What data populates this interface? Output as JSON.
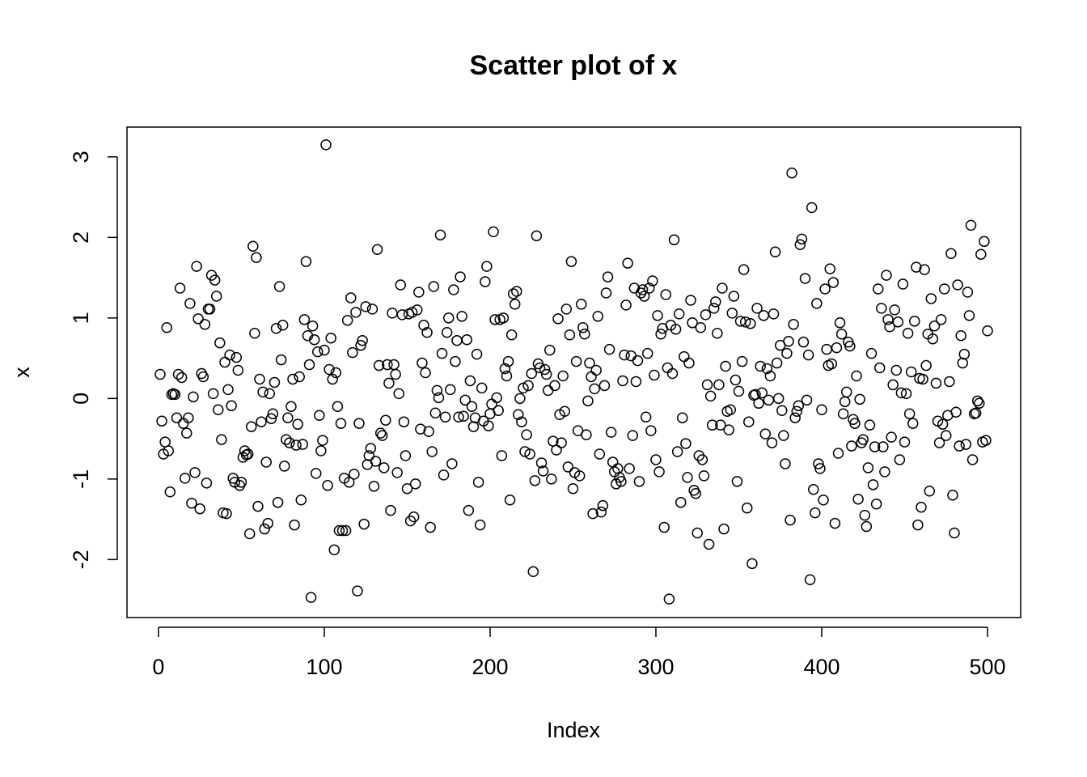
{
  "chart_data": {
    "type": "scatter",
    "title": "Scatter plot of x",
    "x_label": "Index",
    "y_label": "x",
    "color": "#000000",
    "xlim": [
      -19,
      520
    ],
    "ylim": [
      -2.72,
      3.37
    ],
    "xticks": [
      0,
      100,
      200,
      300,
      400,
      500
    ],
    "yticks": [
      -2,
      -1,
      0,
      1,
      2,
      3
    ],
    "x": [
      1,
      2,
      3,
      4,
      5,
      6,
      7,
      8,
      9,
      10,
      11,
      12,
      13,
      14,
      15,
      16,
      17,
      18,
      19,
      20,
      21,
      22,
      23,
      24,
      25,
      26,
      27,
      28,
      29,
      30,
      31,
      32,
      33,
      34,
      35,
      36,
      37,
      38,
      39,
      40,
      41,
      42,
      43,
      44,
      45,
      46,
      47,
      48,
      49,
      50,
      51,
      52,
      53,
      54,
      55,
      56,
      57,
      58,
      59,
      60,
      61,
      62,
      63,
      64,
      65,
      66,
      67,
      68,
      69,
      70,
      71,
      72,
      73,
      74,
      75,
      76,
      77,
      78,
      79,
      80,
      81,
      82,
      83,
      84,
      85,
      86,
      87,
      88,
      89,
      90,
      91,
      92,
      93,
      94,
      95,
      96,
      97,
      98,
      99,
      100,
      101,
      102,
      103,
      104,
      105,
      106,
      107,
      108,
      109,
      110,
      111,
      112,
      113,
      114,
      115,
      116,
      117,
      118,
      119,
      120,
      121,
      122,
      123,
      124,
      125,
      126,
      127,
      128,
      129,
      130,
      131,
      132,
      133,
      134,
      135,
      136,
      137,
      138,
      139,
      140,
      141,
      142,
      143,
      144,
      145,
      146,
      147,
      148,
      149,
      150,
      151,
      152,
      153,
      154,
      155,
      156,
      157,
      158,
      159,
      160,
      161,
      162,
      163,
      164,
      165,
      166,
      167,
      168,
      169,
      170,
      171,
      172,
      173,
      174,
      175,
      176,
      177,
      178,
      179,
      180,
      181,
      182,
      183,
      184,
      185,
      186,
      187,
      188,
      189,
      190,
      191,
      192,
      193,
      194,
      195,
      196,
      197,
      198,
      199,
      200,
      201,
      202,
      203,
      204,
      205,
      206,
      207,
      208,
      209,
      210,
      211,
      212,
      213,
      214,
      215,
      216,
      217,
      218,
      219,
      220,
      221,
      222,
      223,
      224,
      225,
      226,
      227,
      228,
      229,
      230,
      231,
      232,
      233,
      234,
      235,
      236,
      237,
      238,
      239,
      240,
      241,
      242,
      243,
      244,
      245,
      246,
      247,
      248,
      249,
      250,
      251,
      252,
      253,
      254,
      255,
      256,
      257,
      258,
      259,
      260,
      261,
      262,
      263,
      264,
      265,
      266,
      267,
      268,
      269,
      270,
      271,
      272,
      273,
      274,
      275,
      276,
      277,
      278,
      279,
      280,
      281,
      282,
      283,
      284,
      285,
      286,
      287,
      288,
      289,
      290,
      291,
      292,
      293,
      294,
      295,
      296,
      297,
      298,
      299,
      300,
      301,
      302,
      303,
      304,
      305,
      306,
      307,
      308,
      309,
      310,
      311,
      312,
      313,
      314,
      315,
      316,
      317,
      318,
      319,
      320,
      321,
      322,
      323,
      324,
      325,
      326,
      327,
      328,
      329,
      330,
      331,
      332,
      333,
      334,
      335,
      336,
      337,
      338,
      339,
      340,
      341,
      342,
      343,
      344,
      345,
      346,
      347,
      348,
      349,
      350,
      351,
      352,
      353,
      354,
      355,
      356,
      357,
      358,
      359,
      360,
      361,
      362,
      363,
      364,
      365,
      366,
      367,
      368,
      369,
      370,
      371,
      372,
      373,
      374,
      375,
      376,
      377,
      378,
      379,
      380,
      381,
      382,
      383,
      384,
      385,
      386,
      387,
      388,
      389,
      390,
      391,
      392,
      393,
      394,
      395,
      396,
      397,
      398,
      399,
      400,
      401,
      402,
      403,
      404,
      405,
      406,
      407,
      408,
      409,
      410,
      411,
      412,
      413,
      414,
      415,
      416,
      417,
      418,
      419,
      420,
      421,
      422,
      423,
      424,
      425,
      426,
      427,
      428,
      429,
      430,
      431,
      432,
      433,
      434,
      435,
      436,
      437,
      438,
      439,
      440,
      441,
      442,
      443,
      444,
      445,
      446,
      447,
      448,
      449,
      450,
      451,
      452,
      453,
      454,
      455,
      456,
      457,
      458,
      459,
      460,
      461,
      462,
      463,
      464,
      465,
      466,
      467,
      468,
      469,
      470,
      471,
      472,
      473,
      474,
      475,
      476,
      477,
      478,
      479,
      480,
      481,
      482,
      483,
      484,
      485,
      486,
      487,
      488,
      489,
      490,
      491,
      492,
      493,
      494,
      495,
      496,
      497,
      498,
      499,
      500
    ],
    "values": [
      0.3,
      -0.28,
      -0.69,
      -0.54,
      0.88,
      -0.65,
      -1.16,
      0.05,
      0.06,
      0.05,
      -0.24,
      0.3,
      1.37,
      0.26,
      -0.31,
      -0.99,
      -0.43,
      -0.24,
      1.18,
      -1.3,
      0.02,
      -0.92,
      1.64,
      0.99,
      -1.37,
      0.31,
      0.27,
      0.92,
      -1.05,
      1.11,
      1.11,
      1.53,
      0.06,
      1.47,
      1.27,
      -0.14,
      0.69,
      -0.51,
      -1.42,
      0.45,
      -1.43,
      0.11,
      0.54,
      -0.09,
      -0.99,
      -1.04,
      0.51,
      0.35,
      -1.08,
      -1.04,
      -0.73,
      -0.65,
      -0.7,
      -0.69,
      -1.68,
      -0.35,
      1.89,
      0.81,
      1.75,
      -1.34,
      0.24,
      -0.29,
      0.08,
      -1.62,
      -0.79,
      -1.55,
      0.06,
      -0.25,
      -0.19,
      0.2,
      0.87,
      -1.29,
      1.39,
      0.48,
      0.91,
      -0.84,
      -0.51,
      -0.24,
      -0.55,
      -0.1,
      0.24,
      -1.57,
      -0.58,
      -0.32,
      0.27,
      -1.26,
      -0.57,
      0.98,
      1.7,
      0.78,
      0.42,
      -2.47,
      0.9,
      0.73,
      -0.93,
      0.58,
      -0.21,
      -0.65,
      -0.52,
      0.6,
      3.15,
      -1.08,
      0.36,
      0.75,
      0.24,
      -1.88,
      0.32,
      -0.1,
      -1.64,
      -0.31,
      -1.64,
      -0.99,
      -1.64,
      0.97,
      -1.04,
      1.25,
      0.57,
      -0.94,
      1.07,
      -2.39,
      -0.31,
      0.66,
      0.72,
      -1.56,
      1.14,
      -0.82,
      -0.71,
      -0.62,
      1.11,
      -1.09,
      -0.78,
      1.85,
      0.41,
      -0.43,
      -0.46,
      -0.86,
      -0.27,
      0.42,
      0.19,
      -1.39,
      1.06,
      0.42,
      0.3,
      -0.92,
      0.06,
      1.41,
      1.04,
      -0.29,
      -0.71,
      -1.12,
      1.05,
      -1.52,
      1.07,
      -1.47,
      -1.06,
      1.1,
      1.32,
      -0.38,
      0.44,
      0.91,
      0.32,
      0.82,
      -0.41,
      -1.6,
      -0.66,
      1.39,
      -0.18,
      0.1,
      0.01,
      2.03,
      0.56,
      -0.95,
      -0.23,
      0.82,
      1.0,
      0.11,
      -0.81,
      1.35,
      0.46,
      0.72,
      -0.23,
      1.51,
      1.02,
      -0.22,
      -0.02,
      0.73,
      -1.39,
      0.22,
      -0.1,
      -0.35,
      -0.24,
      0.55,
      -1.04,
      -1.57,
      0.13,
      -0.28,
      1.45,
      1.64,
      -0.34,
      -0.19,
      -0.07,
      2.07,
      0.98,
      0.01,
      -0.15,
      0.98,
      -0.71,
      1.0,
      0.37,
      0.28,
      0.46,
      -1.26,
      0.79,
      1.3,
      1.17,
      1.33,
      -0.2,
      0.0,
      -0.29,
      0.13,
      -0.66,
      -0.45,
      0.16,
      -0.69,
      0.31,
      -2.15,
      -1.02,
      2.02,
      0.43,
      0.38,
      -0.8,
      -0.9,
      0.36,
      0.3,
      0.1,
      0.6,
      -1.0,
      -0.53,
      0.16,
      -0.64,
      0.99,
      -0.2,
      -0.55,
      0.28,
      -0.16,
      1.11,
      -0.85,
      0.79,
      1.7,
      -1.12,
      -0.92,
      0.46,
      -0.4,
      -0.96,
      1.17,
      0.88,
      0.8,
      -0.45,
      -0.03,
      0.44,
      0.27,
      -1.43,
      0.12,
      0.35,
      1.02,
      -0.69,
      -1.41,
      -1.33,
      0.16,
      1.31,
      1.51,
      0.61,
      -0.42,
      -0.79,
      -0.91,
      -1.06,
      -0.87,
      -0.98,
      -1.03,
      0.22,
      0.54,
      1.16,
      1.68,
      -0.87,
      0.53,
      -0.46,
      1.37,
      0.21,
      0.47,
      -1.03,
      1.31,
      1.35,
      1.27,
      -0.23,
      0.56,
      1.37,
      -0.4,
      1.46,
      0.29,
      -0.76,
      1.03,
      -0.91,
      0.8,
      0.87,
      -1.6,
      1.29,
      0.38,
      -2.49,
      0.91,
      0.31,
      1.97,
      0.86,
      -0.66,
      1.05,
      -1.29,
      -0.24,
      0.52,
      -0.56,
      -0.98,
      0.44,
      1.22,
      0.94,
      -1.14,
      -1.18,
      -1.67,
      -0.71,
      0.88,
      -0.76,
      -0.96,
      1.04,
      0.17,
      -1.81,
      0.03,
      -0.33,
      1.12,
      1.2,
      0.81,
      0.17,
      -0.33,
      1.37,
      -1.62,
      0.4,
      -0.16,
      -0.39,
      -0.14,
      1.06,
      1.27,
      0.23,
      -1.03,
      0.09,
      0.96,
      0.46,
      1.6,
      0.95,
      -1.36,
      -0.29,
      0.93,
      -2.05,
      0.04,
      0.05,
      1.12,
      -0.06,
      0.4,
      0.07,
      1.03,
      -0.44,
      0.37,
      -0.02,
      0.28,
      -0.55,
      1.05,
      1.82,
      0.44,
      0.0,
      0.66,
      -0.15,
      -0.46,
      -0.81,
      0.56,
      0.71,
      -1.51,
      2.8,
      0.92,
      -0.24,
      -0.16,
      -0.09,
      1.91,
      1.98,
      0.7,
      1.49,
      -0.02,
      0.54,
      -2.25,
      2.37,
      -1.13,
      -1.42,
      1.18,
      -0.81,
      -0.87,
      -0.14,
      -1.26,
      1.36,
      0.61,
      0.41,
      1.61,
      0.43,
      1.44,
      -1.55,
      0.63,
      -0.68,
      0.94,
      0.8,
      -0.19,
      -0.04,
      0.08,
      0.7,
      0.65,
      -0.59,
      -0.26,
      -0.31,
      0.28,
      -1.25,
      -0.01,
      -0.55,
      -0.51,
      -1.45,
      -1.59,
      -0.86,
      -0.33,
      0.56,
      -1.07,
      -0.6,
      -1.31,
      1.36,
      0.38,
      1.12,
      -0.6,
      -0.91,
      1.53,
      0.98,
      0.89,
      -0.48,
      0.17,
      1.1,
      0.35,
      0.95,
      -0.76,
      0.07,
      1.42,
      -0.54,
      0.06,
      0.81,
      -0.19,
      0.33,
      -0.31,
      0.96,
      1.63,
      -1.57,
      0.25,
      -1.35,
      0.24,
      1.6,
      0.41,
      0.8,
      -1.15,
      1.24,
      0.74,
      0.9,
      0.19,
      -0.28,
      -0.55,
      0.98,
      -0.32,
      1.36,
      -0.46,
      -0.21,
      0.21,
      1.8,
      -1.2,
      -1.67,
      -0.17,
      1.41,
      -0.59,
      0.78,
      0.44,
      0.55,
      -0.57,
      1.32,
      1.03,
      2.15,
      -0.76,
      -0.19,
      -0.18,
      -0.03,
      -0.06,
      1.79,
      -0.54,
      1.95,
      -0.52,
      0.84
    ]
  }
}
